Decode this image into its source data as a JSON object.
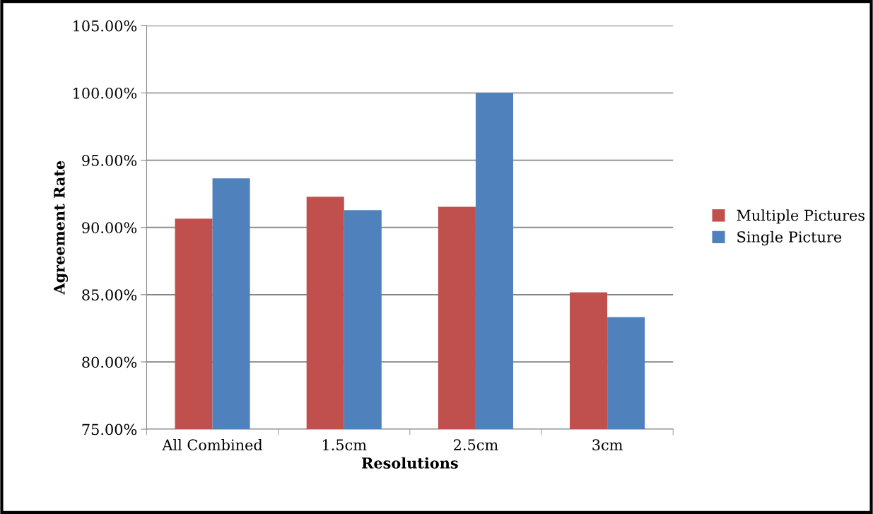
{
  "chart_data": {
    "type": "bar",
    "xlabel": "Resolutions",
    "ylabel": "Agreement Rate",
    "categories": [
      "All Combined",
      "1.5cm",
      "2.5cm",
      "3cm"
    ],
    "series": [
      {
        "name": "Multiple Pictures",
        "color": "#c0504d",
        "values": [
          90.66,
          92.29,
          91.54,
          85.18
        ]
      },
      {
        "name": "Single Picture",
        "color": "#4f81bd",
        "values": [
          93.65,
          91.29,
          100.0,
          83.33
        ]
      }
    ],
    "ylim": [
      75,
      105
    ],
    "yticks": [
      {
        "value": 75,
        "label": "75.00%"
      },
      {
        "value": 80,
        "label": "80.00%"
      },
      {
        "value": 85,
        "label": "85.00%"
      },
      {
        "value": 90,
        "label": "90.00%"
      },
      {
        "value": 95,
        "label": "95.00%"
      },
      {
        "value": 100,
        "label": "100.00%"
      },
      {
        "value": 105,
        "label": "105.00%"
      }
    ],
    "grid": "y",
    "legend": "right"
  }
}
